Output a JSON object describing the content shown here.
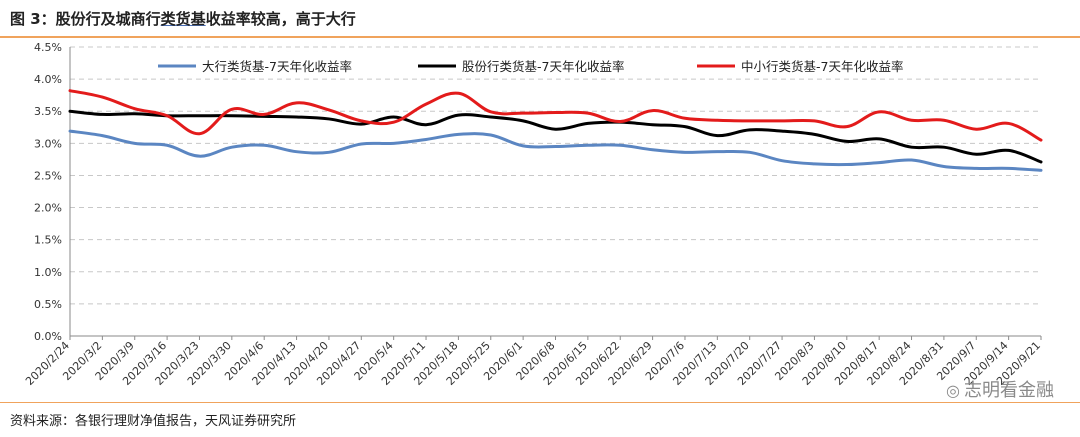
{
  "header": {
    "title_prefix": "图 3：股份行及城商行",
    "title_highlight": "类货基",
    "title_suffix": "收益率较高，高于大行"
  },
  "footer": {
    "source": "资料来源：各银行理财净值报告，天风证券研究所",
    "watermark": "志明看金融"
  },
  "colors": {
    "big_banks": "#5b86c2",
    "joint_stock": "#000000",
    "small_banks": "#e31b1b",
    "rule": "#f0a35c",
    "grid": "#c8c8c8"
  },
  "chart_data": {
    "type": "line",
    "ylim": [
      0,
      4.5
    ],
    "yticks": [
      "0.0%",
      "0.5%",
      "1.0%",
      "1.5%",
      "2.0%",
      "2.5%",
      "3.0%",
      "3.5%",
      "4.0%",
      "4.5%"
    ],
    "grid": "horizontal-dashed",
    "legend_position": "top",
    "categories": [
      "2020/2/24",
      "2020/3/2",
      "2020/3/9",
      "2020/3/16",
      "2020/3/23",
      "2020/3/30",
      "2020/4/6",
      "2020/4/13",
      "2020/4/20",
      "2020/4/27",
      "2020/5/4",
      "2020/5/11",
      "2020/5/18",
      "2020/5/25",
      "2020/6/1",
      "2020/6/8",
      "2020/6/15",
      "2020/6/22",
      "2020/6/29",
      "2020/7/6",
      "2020/7/13",
      "2020/7/20",
      "2020/7/27",
      "2020/8/3",
      "2020/8/10",
      "2020/8/17",
      "2020/8/24",
      "2020/8/31",
      "2020/9/7",
      "2020/9/14",
      "2020/9/21"
    ],
    "series": [
      {
        "name": "大行类货基-7天年化收益率",
        "color": "#5b86c2",
        "values": [
          3.19,
          3.12,
          3.0,
          2.97,
          2.8,
          2.94,
          2.97,
          2.87,
          2.86,
          2.99,
          3.0,
          3.06,
          3.14,
          3.13,
          2.96,
          2.95,
          2.97,
          2.97,
          2.9,
          2.86,
          2.87,
          2.86,
          2.73,
          2.68,
          2.67,
          2.7,
          2.74,
          2.64,
          2.61,
          2.61,
          2.58
        ]
      },
      {
        "name": "股份行类货基-7天年化收益率",
        "color": "#000000",
        "values": [
          3.5,
          3.45,
          3.46,
          3.43,
          3.43,
          3.43,
          3.42,
          3.41,
          3.38,
          3.3,
          3.41,
          3.29,
          3.44,
          3.41,
          3.35,
          3.22,
          3.31,
          3.33,
          3.29,
          3.26,
          3.12,
          3.21,
          3.19,
          3.14,
          3.03,
          3.07,
          2.94,
          2.94,
          2.83,
          2.89,
          2.71
        ]
      },
      {
        "name": "中小行类货基-7天年化收益率",
        "color": "#e31b1b",
        "values": [
          3.82,
          3.72,
          3.54,
          3.43,
          3.15,
          3.53,
          3.45,
          3.63,
          3.52,
          3.35,
          3.33,
          3.61,
          3.78,
          3.49,
          3.47,
          3.48,
          3.47,
          3.34,
          3.51,
          3.39,
          3.36,
          3.35,
          3.35,
          3.35,
          3.26,
          3.49,
          3.36,
          3.36,
          3.22,
          3.31,
          3.05
        ]
      }
    ]
  }
}
